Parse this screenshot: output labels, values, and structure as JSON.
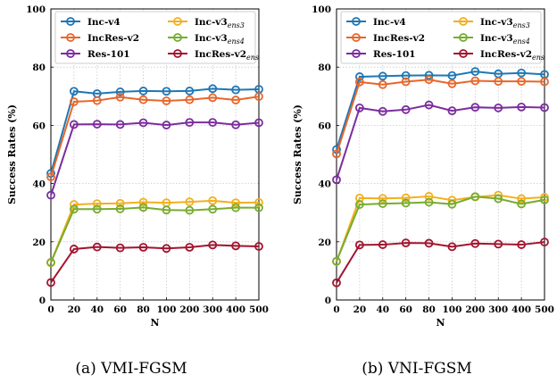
{
  "chart_data": [
    {
      "type": "line",
      "caption": "(a) VMI-FGSM",
      "xlabel": "N",
      "ylabel": "Success Rates (%)",
      "x": [
        "0",
        "20",
        "40",
        "60",
        "80",
        "100",
        "200",
        "300",
        "400",
        "500"
      ],
      "ylim": [
        0,
        100
      ],
      "yticks": [
        "0",
        "20",
        "40",
        "60",
        "80",
        "100"
      ],
      "grid": true,
      "legend_position": "top",
      "series": [
        {
          "name": "Inc-v4",
          "name_main": "Inc-v4",
          "name_sub": "",
          "color": "#1f77b4",
          "values": [
            43.5,
            71.7,
            70.9,
            71.5,
            71.8,
            71.7,
            71.8,
            72.6,
            72.2,
            72.4
          ]
        },
        {
          "name": "IncRes-v2",
          "name_main": "IncRes-v2",
          "name_sub": "",
          "color": "#e8662a",
          "values": [
            42.3,
            68.1,
            68.5,
            69.7,
            68.8,
            68.4,
            68.8,
            69.5,
            68.7,
            69.9
          ]
        },
        {
          "name": "Res-101",
          "name_main": "Res-101",
          "name_sub": "",
          "color": "#7b2d9e",
          "values": [
            36.0,
            60.3,
            60.4,
            60.3,
            60.9,
            60.1,
            61.0,
            61.0,
            60.2,
            60.9
          ]
        },
        {
          "name": "Inc-v3ens3",
          "name_main": "Inc-v3",
          "name_sub": "ens3",
          "color": "#f2b01e",
          "values": [
            12.8,
            32.8,
            33.1,
            33.2,
            33.6,
            33.4,
            33.7,
            34.1,
            33.4,
            33.5
          ]
        },
        {
          "name": "Inc-v3ens4",
          "name_main": "Inc-v3",
          "name_sub": "ens4",
          "color": "#77ac30",
          "values": [
            12.9,
            31.2,
            31.2,
            31.3,
            31.8,
            30.9,
            30.8,
            31.2,
            31.7,
            31.7
          ]
        },
        {
          "name": "IncRes-v2ens",
          "name_main": "IncRes-v2",
          "name_sub": "ens",
          "color": "#a2142f",
          "values": [
            6.0,
            17.5,
            18.2,
            17.9,
            18.1,
            17.7,
            18.1,
            18.9,
            18.6,
            18.4
          ]
        }
      ]
    },
    {
      "type": "line",
      "caption": "(b) VNI-FGSM",
      "xlabel": "N",
      "ylabel": "Success Rates (%)",
      "x": [
        "0",
        "20",
        "40",
        "60",
        "80",
        "100",
        "200",
        "300",
        "400",
        "500"
      ],
      "ylim": [
        0,
        100
      ],
      "yticks": [
        "0",
        "20",
        "40",
        "60",
        "80",
        "100"
      ],
      "grid": true,
      "legend_position": "top",
      "series": [
        {
          "name": "Inc-v4",
          "name_main": "Inc-v4",
          "name_sub": "",
          "color": "#1f77b4",
          "values": [
            51.7,
            76.7,
            76.9,
            77.1,
            77.2,
            77.1,
            78.5,
            77.7,
            78.0,
            77.5
          ]
        },
        {
          "name": "IncRes-v2",
          "name_main": "IncRes-v2",
          "name_sub": "",
          "color": "#e8662a",
          "values": [
            50.2,
            74.9,
            74.0,
            75.0,
            75.7,
            74.3,
            75.3,
            75.1,
            75.1,
            75.0
          ]
        },
        {
          "name": "Res-101",
          "name_main": "Res-101",
          "name_sub": "",
          "color": "#7b2d9e",
          "values": [
            41.3,
            66.0,
            64.8,
            65.4,
            67.0,
            65.0,
            66.2,
            66.0,
            66.3,
            66.1
          ]
        },
        {
          "name": "Inc-v3ens3",
          "name_main": "Inc-v3",
          "name_sub": "ens3",
          "color": "#f2b01e",
          "values": [
            13.2,
            35.0,
            34.9,
            35.1,
            35.6,
            34.3,
            35.4,
            36.0,
            34.8,
            35.3
          ]
        },
        {
          "name": "Inc-v3ens4",
          "name_main": "Inc-v3",
          "name_sub": "ens4",
          "color": "#77ac30",
          "values": [
            13.3,
            32.8,
            33.1,
            33.3,
            33.6,
            32.9,
            35.5,
            34.8,
            33.0,
            34.4
          ]
        },
        {
          "name": "IncRes-v2ens",
          "name_main": "IncRes-v2",
          "name_sub": "ens",
          "color": "#a2142f",
          "values": [
            5.9,
            18.9,
            19.0,
            19.6,
            19.5,
            18.3,
            19.4,
            19.2,
            19.0,
            19.9
          ]
        }
      ]
    }
  ]
}
